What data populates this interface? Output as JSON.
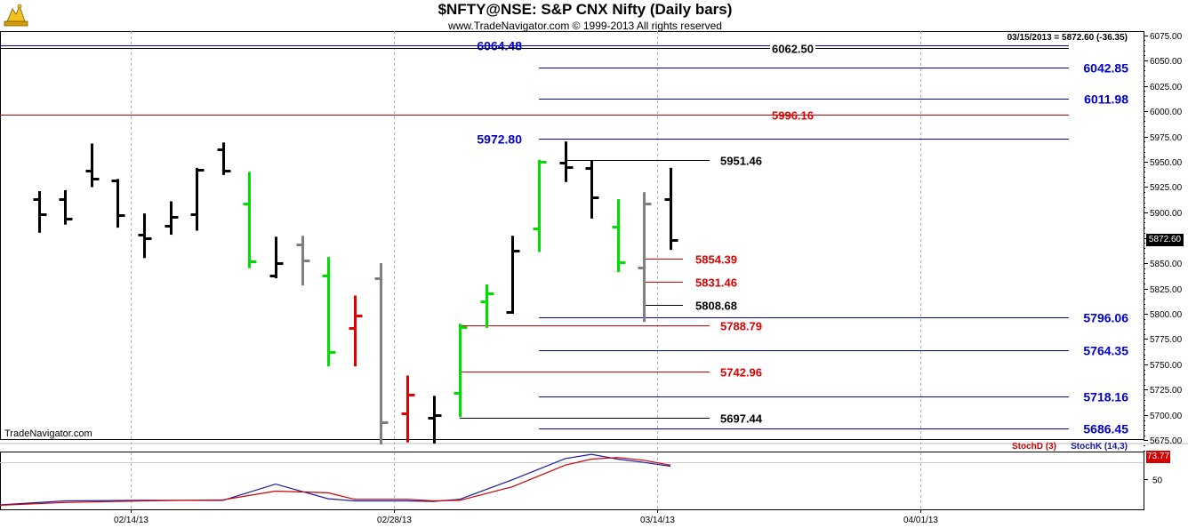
{
  "header": {
    "title": "$NFTY@NSE:  S&P CNX Nifty  (Daily bars)",
    "copyright": "www.TradeNavigator.com © 1999-2013 All rights reserved",
    "last_info": "03/15/2013 = 5872.60 (-36.35)",
    "watermark": "TradeNavigator.com"
  },
  "colors": {
    "up_bar": "#000000",
    "gap_bar": "#808080",
    "green_bar": "#00dd00",
    "red_bar": "#e00000",
    "blue_level": "#0000cc",
    "red_level": "#dd0000",
    "black_level": "#000000",
    "stoch_k": "#1a1aa0",
    "stoch_d": "#cc0000"
  },
  "price_tag": "5872.60",
  "chart_data": [
    {
      "type": "ohlc",
      "title": "$NFTY@NSE:  S&P CNX Nifty  (Daily bars)",
      "ylim": [
        5665,
        6078
      ],
      "y_ticks": [
        "6075.00",
        "6050.00",
        "6025.00",
        "6000.00",
        "5975.00",
        "5950.00",
        "5925.00",
        "5900.00",
        "5875.00",
        "5850.00",
        "5825.00",
        "5800.00",
        "5775.00",
        "5750.00",
        "5725.00",
        "5700.00",
        "5675.00"
      ],
      "x_ticks": [
        {
          "label": "02/14/13",
          "index": 3.5
        },
        {
          "label": "02/28/13",
          "index": 13.5
        },
        {
          "label": "03/14/13",
          "index": 23.5
        },
        {
          "label": "04/01/13",
          "index": 33.5
        }
      ],
      "bars": [
        {
          "o": 5913,
          "h": 5921,
          "l": 5880,
          "c": 5898,
          "color": "black"
        },
        {
          "o": 5913,
          "h": 5922,
          "l": 5888,
          "c": 5894,
          "color": "black"
        },
        {
          "o": 5941,
          "h": 5968,
          "l": 5925,
          "c": 5933,
          "color": "black"
        },
        {
          "o": 5932,
          "h": 5933,
          "l": 5885,
          "c": 5897,
          "color": "black"
        },
        {
          "o": 5878,
          "h": 5899,
          "l": 5855,
          "c": 5875,
          "color": "black"
        },
        {
          "o": 5887,
          "h": 5911,
          "l": 5878,
          "c": 5896,
          "color": "black"
        },
        {
          "o": 5898,
          "h": 5944,
          "l": 5882,
          "c": 5942,
          "color": "black"
        },
        {
          "o": 5962,
          "h": 5969,
          "l": 5937,
          "c": 5941,
          "color": "black"
        },
        {
          "o": 5909,
          "h": 5940,
          "l": 5845,
          "c": 5852,
          "color": "green"
        },
        {
          "o": 5838,
          "h": 5876,
          "l": 5835,
          "c": 5850,
          "color": "black"
        },
        {
          "o": 5868,
          "h": 5877,
          "l": 5828,
          "c": 5853,
          "color": "gray"
        },
        {
          "o": 5838,
          "h": 5856,
          "l": 5748,
          "c": 5762,
          "color": "green"
        },
        {
          "o": 5786,
          "h": 5818,
          "l": 5748,
          "c": 5798,
          "color": "red"
        },
        {
          "o": 5835,
          "h": 5850,
          "l": 5671,
          "c": 5693,
          "color": "gray"
        },
        {
          "o": 5702,
          "h": 5739,
          "l": 5673,
          "c": 5720,
          "color": "red"
        },
        {
          "o": 5697,
          "h": 5719,
          "l": 5672,
          "c": 5700,
          "color": "black"
        },
        {
          "o": 5722,
          "h": 5790,
          "l": 5698,
          "c": 5787,
          "color": "green"
        },
        {
          "o": 5812,
          "h": 5829,
          "l": 5786,
          "c": 5820,
          "color": "green"
        },
        {
          "o": 5802,
          "h": 5877,
          "l": 5800,
          "c": 5862,
          "color": "black"
        },
        {
          "o": 5884,
          "h": 5952,
          "l": 5861,
          "c": 5950,
          "color": "green"
        },
        {
          "o": 5949,
          "h": 5970,
          "l": 5930,
          "c": 5945,
          "color": "black"
        },
        {
          "o": 5944,
          "h": 5951,
          "l": 5894,
          "c": 5915,
          "color": "black"
        },
        {
          "o": 5886,
          "h": 5913,
          "l": 5841,
          "c": 5851,
          "color": "green"
        },
        {
          "o": 5846,
          "h": 5920,
          "l": 5792,
          "c": 5909,
          "color": "gray"
        },
        {
          "o": 5913,
          "h": 5944,
          "l": 5863,
          "c": 5873,
          "color": "black"
        }
      ],
      "levels": [
        {
          "label": "6064.48",
          "value": 6064.48,
          "color": "blue",
          "x0": -2,
          "label_side": "left"
        },
        {
          "label": "6062.50",
          "value": 6062.5,
          "color": "black",
          "x0": -2,
          "label_side": "mid"
        },
        {
          "label": "6042.85",
          "value": 6042.85,
          "color": "blue",
          "x0": 19,
          "label_side": "right"
        },
        {
          "label": "6011.98",
          "value": 6011.98,
          "color": "blue",
          "x0": 19,
          "label_side": "right"
        },
        {
          "label": "5996.16",
          "value": 5996.16,
          "color": "red",
          "x0": -2,
          "label_side": "mid"
        },
        {
          "label": "5972.80",
          "value": 5972.8,
          "color": "blue",
          "x0": 19,
          "label_side": "left"
        },
        {
          "label": "5951.46",
          "value": 5951.46,
          "color": "black",
          "x0": 20,
          "label_side": "mid"
        },
        {
          "label": "5854.39",
          "value": 5854.39,
          "color": "red",
          "x0": 23,
          "label_side": "mid"
        },
        {
          "label": "5831.46",
          "value": 5831.46,
          "color": "red",
          "x0": 23,
          "label_side": "mid"
        },
        {
          "label": "5808.68",
          "value": 5808.68,
          "color": "black",
          "x0": 23,
          "label_side": "mid"
        },
        {
          "label": "5796.06",
          "value": 5796.06,
          "color": "blue",
          "x0": 19,
          "label_side": "right"
        },
        {
          "label": "5788.79",
          "value": 5788.79,
          "color": "red",
          "x0": 16,
          "label_side": "mid"
        },
        {
          "label": "5764.35",
          "value": 5764.35,
          "color": "blue",
          "x0": 19,
          "label_side": "right"
        },
        {
          "label": "5742.96",
          "value": 5742.96,
          "color": "red",
          "x0": 16,
          "label_side": "mid"
        },
        {
          "label": "5718.16",
          "value": 5718.16,
          "color": "blue",
          "x0": 19,
          "label_side": "right"
        },
        {
          "label": "5697.44",
          "value": 5697.44,
          "color": "black",
          "x0": 16,
          "label_side": "mid"
        },
        {
          "label": "5686.45",
          "value": 5686.45,
          "color": "blue",
          "x0": 19,
          "label_side": "right"
        }
      ]
    },
    {
      "type": "line",
      "title": "",
      "ylim": [
        0,
        100
      ],
      "y_ticks": [
        "50"
      ],
      "last_value": "73.77",
      "series": [
        {
          "name": "StochK (14,3)",
          "color": "blue",
          "values": [
            [
              -2,
              0
            ],
            [
              1,
              9
            ],
            [
              4,
              10
            ],
            [
              7,
              10
            ],
            [
              9,
              40
            ],
            [
              11,
              13
            ],
            [
              12,
              9
            ],
            [
              14,
              9
            ],
            [
              15,
              8
            ],
            [
              16,
              12
            ],
            [
              18,
              48
            ],
            [
              20,
              87
            ],
            [
              21,
              95
            ],
            [
              22,
              86
            ],
            [
              23,
              80
            ],
            [
              24,
              73
            ]
          ]
        },
        {
          "name": "StochD (3)",
          "color": "red",
          "values": [
            [
              -2,
              0
            ],
            [
              1,
              6
            ],
            [
              4,
              9
            ],
            [
              7,
              11
            ],
            [
              9,
              27
            ],
            [
              11,
              24
            ],
            [
              12,
              12
            ],
            [
              14,
              12
            ],
            [
              15,
              9
            ],
            [
              16,
              10
            ],
            [
              18,
              35
            ],
            [
              20,
              75
            ],
            [
              21,
              86
            ],
            [
              22,
              89
            ],
            [
              23,
              84
            ],
            [
              24,
              75
            ]
          ]
        }
      ]
    }
  ]
}
